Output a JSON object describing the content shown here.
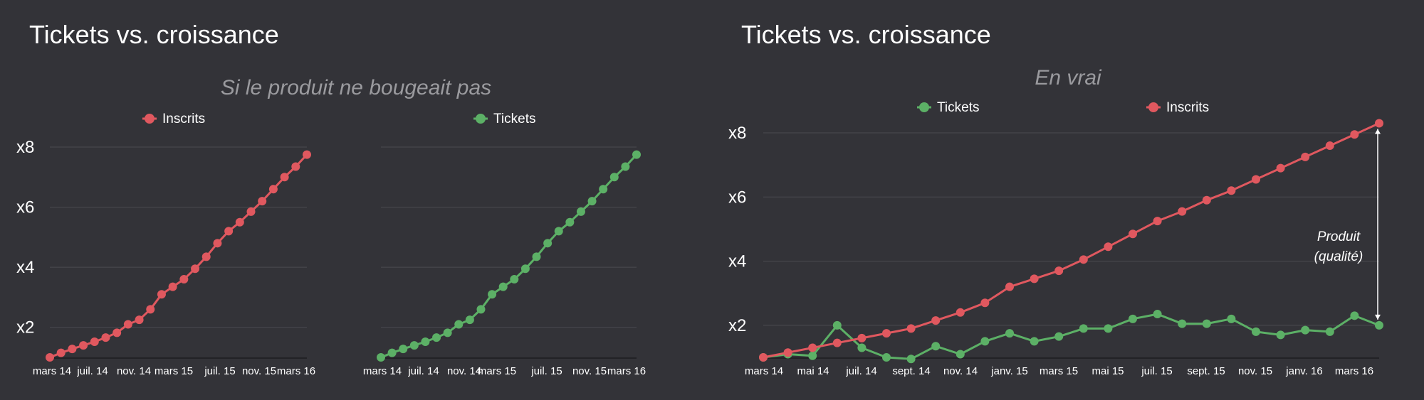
{
  "slides": [
    {
      "title": "Tickets vs. croissance"
    },
    {
      "title": "Tickets vs. croissance"
    }
  ],
  "colors": {
    "inscrits": "#e0585f",
    "tickets": "#5cb066",
    "background": "#333338",
    "grid": "#4b4b50"
  },
  "chart_data": [
    {
      "type": "line",
      "subtitle": "Si le produit ne bougeait pas",
      "legend_position": "top",
      "grid": true,
      "yticks": [
        "x2",
        "x4",
        "x6",
        "x8"
      ],
      "xticks": [
        "mars 14",
        "juil. 14",
        "nov. 14",
        "mars 15",
        "juil. 15",
        "nov. 15",
        "mars 16"
      ],
      "ylim": [
        1,
        8
      ],
      "series": [
        {
          "name": "Inscrits",
          "color": "#e0585f",
          "values": [
            1,
            1.15,
            1.28,
            1.4,
            1.52,
            1.66,
            1.82,
            2.1,
            2.25,
            2.6,
            3.1,
            3.35,
            3.6,
            3.95,
            4.35,
            4.8,
            5.2,
            5.5,
            5.85,
            6.2,
            6.6,
            7.0,
            7.35,
            7.75
          ]
        }
      ]
    },
    {
      "type": "line",
      "legend_position": "top",
      "grid": true,
      "yticks": [
        "x2",
        "x4",
        "x6",
        "x8"
      ],
      "xticks": [
        "mars 14",
        "juil. 14",
        "nov. 14",
        "mars 15",
        "juil. 15",
        "nov. 15",
        "mars 16"
      ],
      "ylim": [
        1,
        8
      ],
      "series": [
        {
          "name": "Tickets",
          "color": "#5cb066",
          "values": [
            1,
            1.15,
            1.28,
            1.4,
            1.52,
            1.66,
            1.82,
            2.1,
            2.25,
            2.6,
            3.1,
            3.35,
            3.6,
            3.95,
            4.35,
            4.8,
            5.2,
            5.5,
            5.85,
            6.2,
            6.6,
            7.0,
            7.35,
            7.75
          ]
        }
      ]
    },
    {
      "type": "line",
      "subtitle": "En vrai",
      "legend_position": "top",
      "grid": true,
      "yticks": [
        "x2",
        "x4",
        "x6",
        "x8"
      ],
      "xticks": [
        "mars 14",
        "mai 14",
        "juil. 14",
        "sept. 14",
        "nov. 14",
        "janv. 15",
        "mars 15",
        "mai 15",
        "juil. 15",
        "sept. 15",
        "nov. 15",
        "janv. 16",
        "mars 16"
      ],
      "ylim": [
        1,
        8
      ],
      "annotation": "Produit\n(qualité)",
      "series": [
        {
          "name": "Tickets",
          "color": "#5cb066",
          "values": [
            1,
            1.1,
            1.05,
            2.0,
            1.3,
            1.0,
            0.95,
            1.35,
            1.1,
            1.5,
            1.75,
            1.5,
            1.65,
            1.9,
            1.9,
            2.2,
            2.35,
            2.05,
            2.05,
            2.2,
            1.8,
            1.7,
            1.85,
            1.8,
            2.3,
            2.0
          ]
        },
        {
          "name": "Inscrits",
          "color": "#e0585f",
          "values": [
            1,
            1.15,
            1.3,
            1.45,
            1.6,
            1.75,
            1.9,
            2.15,
            2.4,
            2.7,
            3.2,
            3.45,
            3.7,
            4.05,
            4.45,
            4.85,
            5.25,
            5.55,
            5.9,
            6.2,
            6.55,
            6.9,
            7.25,
            7.6,
            7.95,
            8.3
          ]
        }
      ]
    }
  ]
}
